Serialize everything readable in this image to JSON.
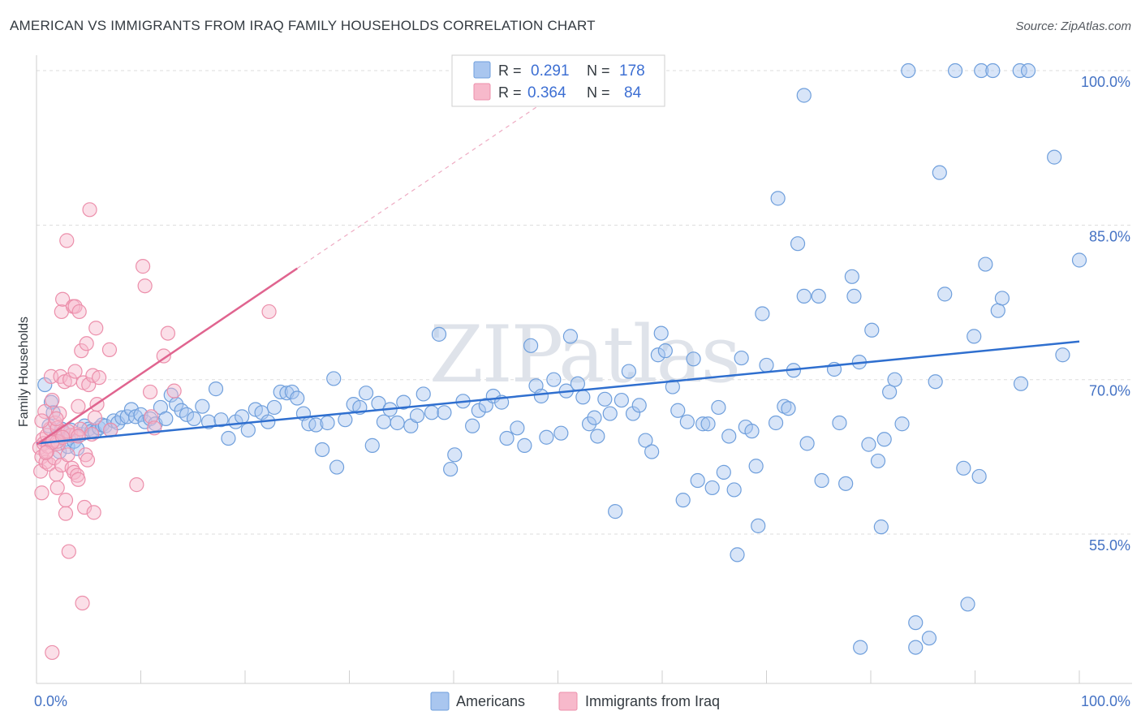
{
  "title": "AMERICAN VS IMMIGRANTS FROM IRAQ FAMILY HOUSEHOLDS CORRELATION CHART",
  "source": "Source: ZipAtlas.com",
  "watermark": "ZIPatlas",
  "colors": {
    "blue_fill": "#a9c6ef",
    "blue_stroke": "#6f9fdc",
    "blue_line": "#2f6fcf",
    "pink_fill": "#f7b9cb",
    "pink_stroke": "#ec8fab",
    "pink_line": "#e0648f",
    "tick_text": "#4472c4"
  },
  "legend_box": {
    "rows": [
      {
        "r_label": "R =",
        "r_value": "0.291",
        "n_label": "N =",
        "n_value": "178",
        "series": "blue"
      },
      {
        "r_label": "R =",
        "r_value": "0.364",
        "n_label": "N =",
        "n_value": "84",
        "series": "pink"
      }
    ]
  },
  "bottom_legend": [
    {
      "label": "Americans",
      "series": "blue"
    },
    {
      "label": "Immigrants from Iraq",
      "series": "pink"
    }
  ],
  "chart_data": {
    "type": "scatter",
    "title": "AMERICAN VS IMMIGRANTS FROM IRAQ FAMILY HOUSEHOLDS CORRELATION CHART",
    "xlabel": "",
    "ylabel": "Family Households",
    "xlim": [
      0,
      100
    ],
    "ylim": [
      40.5,
      101.5
    ],
    "x_tick_labels": [
      "0.0%",
      "100.0%"
    ],
    "y_ticks": [
      {
        "value": 55,
        "label": "55.0%"
      },
      {
        "value": 70,
        "label": "70.0%"
      },
      {
        "value": 85,
        "label": "85.0%"
      },
      {
        "value": 100,
        "label": "100.0%"
      }
    ],
    "grid": true,
    "series": [
      {
        "name": "Americans",
        "color": "blue",
        "R": 0.291,
        "N": 178,
        "trend": {
          "x": [
            0,
            100
          ],
          "y": [
            63.8,
            73.7
          ],
          "dashed_from": null
        },
        "points": [
          [
            0.8,
            69.5
          ],
          [
            1.2,
            65.5
          ],
          [
            1.4,
            67.8
          ],
          [
            1.6,
            66.8
          ],
          [
            1.9,
            64.5
          ],
          [
            2.2,
            63.0
          ],
          [
            2.4,
            65.2
          ],
          [
            2.6,
            64.8
          ],
          [
            2.8,
            64.2
          ],
          [
            3.0,
            63.5
          ],
          [
            3.3,
            65.1
          ],
          [
            3.6,
            64.0
          ],
          [
            3.9,
            63.3
          ],
          [
            4.3,
            64.7
          ],
          [
            4.6,
            65.5
          ],
          [
            5.0,
            65.2
          ],
          [
            5.3,
            65.0
          ],
          [
            5.6,
            64.9
          ],
          [
            6.0,
            65.3
          ],
          [
            6.3,
            65.6
          ],
          [
            6.6,
            65.5
          ],
          [
            7.1,
            65.1
          ],
          [
            7.4,
            66.0
          ],
          [
            7.8,
            65.8
          ],
          [
            8.2,
            66.3
          ],
          [
            8.7,
            66.4
          ],
          [
            9.1,
            67.1
          ],
          [
            9.5,
            66.4
          ],
          [
            10.0,
            66.6
          ],
          [
            10.4,
            65.9
          ],
          [
            10.9,
            66.2
          ],
          [
            11.4,
            65.7
          ],
          [
            11.9,
            67.3
          ],
          [
            12.4,
            66.2
          ],
          [
            12.9,
            68.5
          ],
          [
            13.4,
            67.6
          ],
          [
            13.9,
            67.0
          ],
          [
            14.4,
            66.6
          ],
          [
            15.1,
            66.2
          ],
          [
            15.9,
            67.4
          ],
          [
            16.5,
            65.9
          ],
          [
            17.2,
            69.1
          ],
          [
            17.7,
            66.1
          ],
          [
            18.4,
            64.3
          ],
          [
            19.1,
            65.9
          ],
          [
            19.7,
            66.4
          ],
          [
            20.3,
            65.1
          ],
          [
            21.0,
            67.1
          ],
          [
            21.6,
            66.8
          ],
          [
            22.2,
            65.9
          ],
          [
            22.8,
            67.3
          ],
          [
            23.4,
            68.8
          ],
          [
            24.0,
            68.7
          ],
          [
            24.5,
            68.8
          ],
          [
            25.0,
            68.2
          ],
          [
            25.6,
            66.7
          ],
          [
            26.1,
            65.7
          ],
          [
            26.8,
            65.6
          ],
          [
            27.4,
            63.2
          ],
          [
            27.9,
            65.8
          ],
          [
            28.5,
            70.1
          ],
          [
            28.8,
            61.5
          ],
          [
            29.6,
            66.1
          ],
          [
            30.4,
            67.6
          ],
          [
            31.0,
            67.3
          ],
          [
            31.6,
            68.7
          ],
          [
            32.2,
            63.6
          ],
          [
            32.8,
            67.7
          ],
          [
            33.3,
            65.9
          ],
          [
            33.9,
            67.1
          ],
          [
            34.6,
            65.8
          ],
          [
            35.2,
            67.8
          ],
          [
            35.9,
            65.5
          ],
          [
            36.5,
            66.5
          ],
          [
            37.1,
            68.6
          ],
          [
            37.9,
            66.8
          ],
          [
            38.6,
            74.4
          ],
          [
            39.1,
            66.8
          ],
          [
            39.7,
            61.3
          ],
          [
            40.1,
            62.7
          ],
          [
            40.9,
            67.9
          ],
          [
            41.8,
            65.5
          ],
          [
            42.4,
            67.0
          ],
          [
            43.1,
            67.5
          ],
          [
            43.8,
            68.4
          ],
          [
            44.6,
            67.8
          ],
          [
            45.1,
            64.3
          ],
          [
            46.1,
            65.3
          ],
          [
            46.8,
            63.6
          ],
          [
            47.4,
            73.3
          ],
          [
            47.9,
            69.4
          ],
          [
            48.4,
            68.4
          ],
          [
            48.9,
            64.4
          ],
          [
            49.6,
            70.0
          ],
          [
            50.3,
            64.8
          ],
          [
            50.8,
            68.9
          ],
          [
            51.2,
            74.2
          ],
          [
            51.9,
            69.6
          ],
          [
            52.4,
            68.3
          ],
          [
            53.0,
            65.7
          ],
          [
            53.5,
            66.3
          ],
          [
            53.8,
            64.5
          ],
          [
            54.5,
            68.1
          ],
          [
            55.0,
            66.7
          ],
          [
            55.5,
            57.2
          ],
          [
            56.1,
            68.0
          ],
          [
            56.8,
            70.8
          ],
          [
            57.2,
            66.7
          ],
          [
            57.8,
            67.5
          ],
          [
            58.4,
            64.1
          ],
          [
            59.0,
            63.0
          ],
          [
            59.6,
            72.4
          ],
          [
            59.9,
            74.5
          ],
          [
            60.3,
            72.8
          ],
          [
            61.0,
            69.3
          ],
          [
            61.5,
            67.0
          ],
          [
            62.0,
            58.3
          ],
          [
            62.4,
            65.9
          ],
          [
            63.0,
            72.0
          ],
          [
            63.4,
            60.2
          ],
          [
            63.9,
            65.7
          ],
          [
            64.4,
            65.7
          ],
          [
            64.8,
            59.5
          ],
          [
            65.4,
            67.3
          ],
          [
            65.9,
            61.0
          ],
          [
            66.4,
            64.5
          ],
          [
            66.9,
            59.3
          ],
          [
            67.2,
            53.0
          ],
          [
            67.6,
            72.1
          ],
          [
            68.0,
            65.4
          ],
          [
            68.6,
            65.0
          ],
          [
            69.0,
            61.6
          ],
          [
            69.2,
            55.8
          ],
          [
            69.6,
            76.4
          ],
          [
            70.0,
            71.4
          ],
          [
            70.9,
            65.8
          ],
          [
            71.1,
            87.6
          ],
          [
            71.7,
            67.4
          ],
          [
            72.1,
            67.2
          ],
          [
            72.6,
            70.9
          ],
          [
            73.0,
            83.2
          ],
          [
            73.6,
            78.1
          ],
          [
            73.9,
            63.8
          ],
          [
            73.6,
            97.6
          ],
          [
            75.0,
            78.1
          ],
          [
            75.3,
            60.2
          ],
          [
            76.5,
            71.0
          ],
          [
            77.0,
            65.8
          ],
          [
            77.6,
            59.9
          ],
          [
            78.2,
            80.0
          ],
          [
            78.4,
            78.1
          ],
          [
            78.9,
            71.7
          ],
          [
            79.0,
            44.0
          ],
          [
            79.8,
            63.7
          ],
          [
            80.1,
            74.8
          ],
          [
            80.7,
            62.1
          ],
          [
            81.0,
            55.7
          ],
          [
            81.3,
            64.2
          ],
          [
            81.8,
            68.8
          ],
          [
            82.3,
            70.0
          ],
          [
            83.0,
            65.7
          ],
          [
            83.6,
            100.0
          ],
          [
            84.3,
            46.4
          ],
          [
            84.3,
            44.0
          ],
          [
            85.6,
            44.9
          ],
          [
            86.2,
            69.8
          ],
          [
            86.6,
            90.1
          ],
          [
            87.1,
            78.3
          ],
          [
            88.1,
            100.0
          ],
          [
            88.9,
            61.4
          ],
          [
            89.3,
            48.2
          ],
          [
            89.9,
            74.2
          ],
          [
            90.4,
            60.6
          ],
          [
            90.6,
            100.0
          ],
          [
            91.0,
            81.2
          ],
          [
            91.7,
            100.0
          ],
          [
            92.2,
            76.7
          ],
          [
            92.6,
            77.9
          ],
          [
            94.3,
            100.0
          ],
          [
            94.4,
            69.6
          ],
          [
            95.1,
            100.0
          ],
          [
            97.6,
            91.6
          ],
          [
            98.4,
            72.4
          ],
          [
            100.0,
            81.6
          ]
        ]
      },
      {
        "name": "Immigrants from Iraq",
        "color": "pink",
        "R": 0.364,
        "N": 84,
        "trend": {
          "x": [
            0,
            25
          ],
          "y": [
            63.7,
            80.8
          ],
          "dashed_to": {
            "x": 48,
            "y": 96.5
          }
        },
        "points": [
          [
            0.3,
            63.4
          ],
          [
            0.4,
            61.1
          ],
          [
            0.5,
            59.0
          ],
          [
            0.5,
            62.5
          ],
          [
            0.6,
            64.2
          ],
          [
            0.7,
            63.8
          ],
          [
            0.8,
            66.9
          ],
          [
            0.9,
            62.0
          ],
          [
            1.0,
            64.6
          ],
          [
            1.1,
            63.5
          ],
          [
            1.2,
            61.8
          ],
          [
            1.3,
            65.2
          ],
          [
            1.4,
            70.3
          ],
          [
            1.5,
            68.0
          ],
          [
            1.6,
            64.1
          ],
          [
            1.7,
            62.4
          ],
          [
            1.8,
            65.8
          ],
          [
            1.9,
            60.8
          ],
          [
            2.0,
            59.5
          ],
          [
            2.0,
            65.3
          ],
          [
            2.1,
            63.8
          ],
          [
            2.2,
            66.7
          ],
          [
            2.3,
            70.3
          ],
          [
            2.4,
            61.7
          ],
          [
            2.4,
            76.6
          ],
          [
            2.5,
            77.8
          ],
          [
            2.6,
            64.9
          ],
          [
            2.7,
            69.8
          ],
          [
            2.8,
            57.0
          ],
          [
            2.8,
            58.3
          ],
          [
            2.9,
            83.5
          ],
          [
            3.0,
            62.7
          ],
          [
            3.1,
            53.3
          ],
          [
            3.2,
            70.0
          ],
          [
            3.3,
            64.6
          ],
          [
            3.4,
            61.4
          ],
          [
            3.5,
            77.1
          ],
          [
            3.6,
            61.0
          ],
          [
            3.7,
            70.8
          ],
          [
            3.7,
            77.1
          ],
          [
            3.8,
            64.7
          ],
          [
            3.9,
            60.7
          ],
          [
            4.0,
            60.3
          ],
          [
            4.0,
            67.4
          ],
          [
            4.1,
            76.6
          ],
          [
            4.2,
            65.2
          ],
          [
            4.3,
            72.8
          ],
          [
            4.4,
            48.3
          ],
          [
            4.5,
            69.7
          ],
          [
            4.6,
            57.6
          ],
          [
            4.7,
            62.7
          ],
          [
            4.8,
            73.5
          ],
          [
            4.9,
            62.2
          ],
          [
            5.0,
            69.5
          ],
          [
            5.1,
            86.5
          ],
          [
            5.3,
            64.7
          ],
          [
            5.4,
            70.4
          ],
          [
            5.5,
            57.1
          ],
          [
            5.6,
            66.3
          ],
          [
            5.7,
            75.0
          ],
          [
            5.8,
            67.6
          ],
          [
            6.0,
            70.2
          ],
          [
            7.0,
            72.9
          ],
          [
            7.1,
            65.1
          ],
          [
            9.6,
            59.8
          ],
          [
            10.2,
            81.0
          ],
          [
            10.4,
            79.1
          ],
          [
            10.9,
            68.8
          ],
          [
            11.0,
            66.4
          ],
          [
            11.3,
            65.3
          ],
          [
            12.2,
            72.3
          ],
          [
            12.6,
            74.5
          ],
          [
            13.2,
            68.9
          ],
          [
            22.3,
            76.6
          ],
          [
            1.5,
            43.5
          ],
          [
            0.5,
            66.0
          ],
          [
            1.0,
            63.0
          ],
          [
            2.0,
            64.0
          ],
          [
            3.0,
            65.0
          ],
          [
            4.0,
            64.5
          ],
          [
            1.5,
            63.9
          ],
          [
            2.5,
            64.4
          ],
          [
            0.9,
            62.9
          ],
          [
            1.9,
            66.2
          ]
        ]
      }
    ]
  }
}
